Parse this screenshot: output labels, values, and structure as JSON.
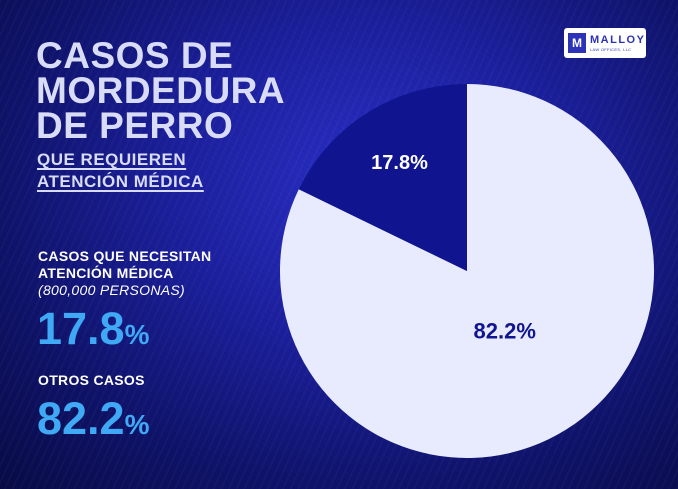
{
  "title": {
    "lines": [
      "CASOS DE",
      "MORDEDURA",
      "DE PERRO"
    ],
    "sub_lines": [
      "QUE REQUIEREN",
      "ATENCIÓN MÉDICA"
    ]
  },
  "logo": {
    "mark": "M",
    "name": "MALLOY",
    "sub": "LAW OFFICES, LLC"
  },
  "stats": [
    {
      "label_lines": [
        "CASOS QUE NECESITAN",
        "ATENCIÓN MÉDICA"
      ],
      "note": "(800,000 PERSONAS)",
      "value": "17.8",
      "unit": "%"
    },
    {
      "label_lines": [
        "OTROS CASOS"
      ],
      "note": "",
      "value": "82.2",
      "unit": "%"
    }
  ],
  "colors": {
    "slice_small": "#10148f",
    "slice_large": "#e8ebfd",
    "label_small": "#ffffff",
    "label_large": "#10148f",
    "stat_value": "#3fa9f5"
  },
  "chart_data": {
    "type": "pie",
    "slices": [
      {
        "label": "17.8%",
        "value": 17.8,
        "color": "#10148f"
      },
      {
        "label": "82.2%",
        "value": 82.2,
        "color": "#e8ebfd"
      }
    ],
    "start_angle_deg": 0,
    "direction": "counterclockwise"
  }
}
